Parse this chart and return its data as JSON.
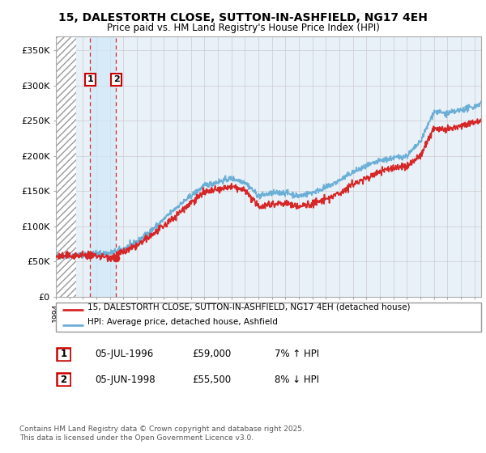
{
  "title": "15, DALESTORTH CLOSE, SUTTON-IN-ASHFIELD, NG17 4EH",
  "subtitle": "Price paid vs. HM Land Registry's House Price Index (HPI)",
  "ylabel_ticks": [
    "£0",
    "£50K",
    "£100K",
    "£150K",
    "£200K",
    "£250K",
    "£300K",
    "£350K"
  ],
  "ytick_values": [
    0,
    50000,
    100000,
    150000,
    200000,
    250000,
    300000,
    350000
  ],
  "ylim": [
    0,
    370000
  ],
  "xlim_start": 1994.0,
  "xlim_end": 2025.5,
  "purchase1_date": 1996.5,
  "purchase1_price": 59000,
  "purchase1_label": "1",
  "purchase2_date": 1998.45,
  "purchase2_price": 55500,
  "purchase2_label": "2",
  "legend_line1": "15, DALESTORTH CLOSE, SUTTON-IN-ASHFIELD, NG17 4EH (detached house)",
  "legend_line2": "HPI: Average price, detached house, Ashfield",
  "footer": "Contains HM Land Registry data © Crown copyright and database right 2025.\nThis data is licensed under the Open Government Licence v3.0.",
  "hpi_color": "#6baed6",
  "price_color": "#d62728",
  "purchase_dot_color": "#d62728",
  "dashed_line_color": "#d62728",
  "grid_color": "#cccccc",
  "box_color": "#cc0000",
  "chart_bg": "#e8f0f8",
  "hatch_bg": "#ffffff"
}
